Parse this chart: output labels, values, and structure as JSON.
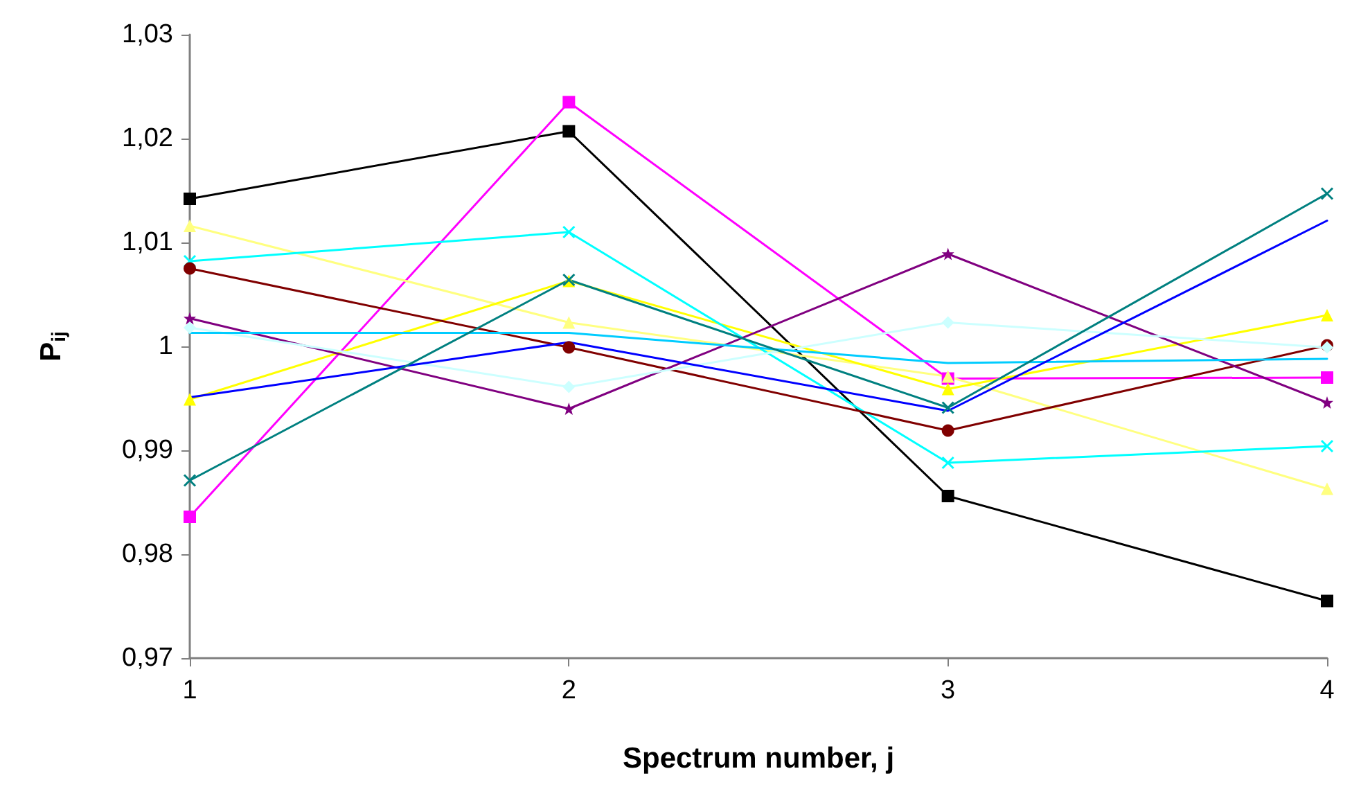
{
  "chart_data": {
    "type": "line",
    "xlabel": "Spectrum number, j",
    "ylabel": "P$_{ij}$",
    "x": [
      1,
      2,
      3,
      4
    ],
    "xlim": [
      1,
      4
    ],
    "xticks": [
      1,
      2,
      3,
      4
    ],
    "ylim": [
      0.97,
      1.03
    ],
    "yticks": [
      {
        "value": 0.97,
        "label": "0,97"
      },
      {
        "value": 0.98,
        "label": "0,98"
      },
      {
        "value": 0.99,
        "label": "0,99"
      },
      1,
      {
        "value": 1.01,
        "label": "1,01"
      },
      {
        "value": 1.02,
        "label": "1,02"
      },
      {
        "value": 1.03,
        "label": "1,03"
      }
    ],
    "grid": false,
    "line_style": "solid",
    "series": [
      {
        "color": "#000000",
        "marker": "square",
        "values": [
          1.0142,
          1.0207,
          0.9856,
          0.9755
        ]
      },
      {
        "color": "#ff00ff",
        "marker": "square",
        "values": [
          0.9836,
          1.0235,
          0.9969,
          0.997
        ]
      },
      {
        "color": "#ffff80",
        "marker": "triangle",
        "values": [
          1.0116,
          1.0023,
          0.9971,
          0.9863
        ]
      },
      {
        "color": "#ffff00",
        "marker": "triangle",
        "values": [
          0.9949,
          1.0063,
          0.9959,
          1.003
        ]
      },
      {
        "color": "#00ffff",
        "marker": "cross",
        "values": [
          1.0082,
          1.011,
          0.9888,
          0.9904
        ]
      },
      {
        "color": "#800000",
        "marker": "circle",
        "values": [
          1.0075,
          0.9999,
          0.9919,
          1.0001
        ]
      },
      {
        "color": "#800080",
        "marker": "star",
        "values": [
          1.0027,
          0.994,
          1.0089,
          0.9946
        ]
      },
      {
        "color": "#ccffff",
        "marker": "diamond",
        "values": [
          1.0018,
          0.9961,
          1.0023,
          0.9999
        ]
      },
      {
        "color": "#00ccff",
        "marker": "none",
        "values": [
          1.0013,
          1.0013,
          0.9984,
          0.9988
        ]
      },
      {
        "color": "#0000ff",
        "marker": "none",
        "values": [
          0.9951,
          1.0004,
          0.9938,
          1.0121
        ]
      },
      {
        "color": "#008080",
        "marker": "cross",
        "values": [
          0.9871,
          1.0064,
          0.9941,
          1.0147
        ]
      }
    ]
  }
}
